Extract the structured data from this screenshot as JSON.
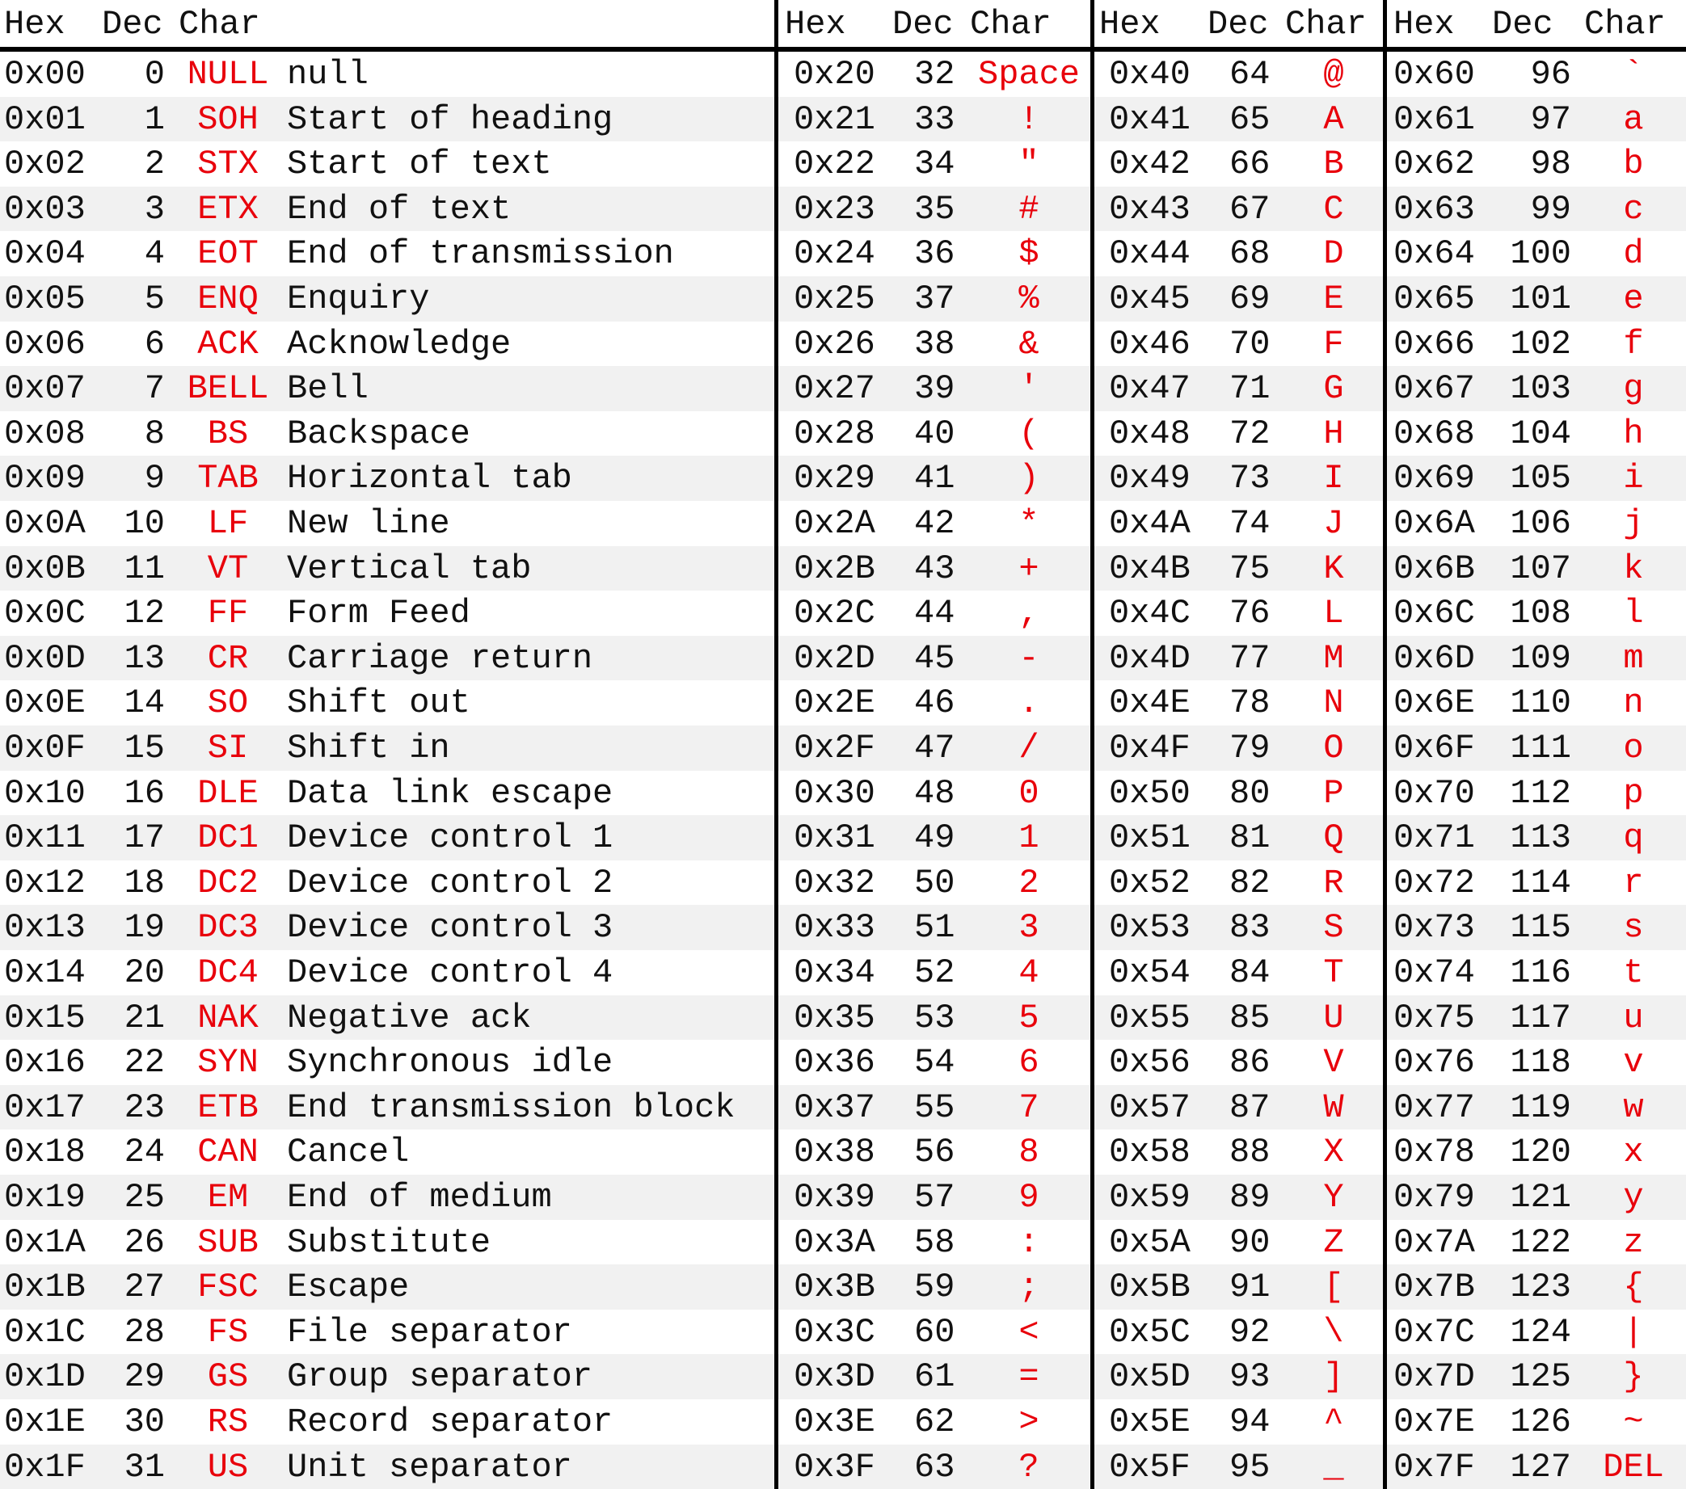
{
  "headers": {
    "b1": [
      "Hex",
      "Dec",
      "Char"
    ],
    "b2": [
      "Hex",
      "Dec",
      "Char"
    ],
    "b3": [
      "Hex",
      "Dec",
      "Char"
    ],
    "b4": [
      "Hex",
      "Dec",
      "Char"
    ]
  },
  "colors": {
    "char": "#e8000b",
    "text": "#111111",
    "alt_row": "#f1f1f1"
  },
  "control": [
    [
      "0x00",
      "0",
      "NULL",
      "null"
    ],
    [
      "0x01",
      "1",
      "SOH",
      "Start of heading"
    ],
    [
      "0x02",
      "2",
      "STX",
      "Start of text"
    ],
    [
      "0x03",
      "3",
      "ETX",
      "End of text"
    ],
    [
      "0x04",
      "4",
      "EOT",
      "End of transmission"
    ],
    [
      "0x05",
      "5",
      "ENQ",
      "Enquiry"
    ],
    [
      "0x06",
      "6",
      "ACK",
      "Acknowledge"
    ],
    [
      "0x07",
      "7",
      "BELL",
      "Bell"
    ],
    [
      "0x08",
      "8",
      "BS",
      "Backspace"
    ],
    [
      "0x09",
      "9",
      "TAB",
      "Horizontal tab"
    ],
    [
      "0x0A",
      "10",
      "LF",
      "New line"
    ],
    [
      "0x0B",
      "11",
      "VT",
      "Vertical tab"
    ],
    [
      "0x0C",
      "12",
      "FF",
      "Form Feed"
    ],
    [
      "0x0D",
      "13",
      "CR",
      "Carriage return"
    ],
    [
      "0x0E",
      "14",
      "SO",
      "Shift out"
    ],
    [
      "0x0F",
      "15",
      "SI",
      "Shift in"
    ],
    [
      "0x10",
      "16",
      "DLE",
      "Data link escape"
    ],
    [
      "0x11",
      "17",
      "DC1",
      "Device control 1"
    ],
    [
      "0x12",
      "18",
      "DC2",
      "Device control 2"
    ],
    [
      "0x13",
      "19",
      "DC3",
      "Device control 3"
    ],
    [
      "0x14",
      "20",
      "DC4",
      "Device control 4"
    ],
    [
      "0x15",
      "21",
      "NAK",
      "Negative ack"
    ],
    [
      "0x16",
      "22",
      "SYN",
      "Synchronous idle"
    ],
    [
      "0x17",
      "23",
      "ETB",
      "End transmission block"
    ],
    [
      "0x18",
      "24",
      "CAN",
      "Cancel"
    ],
    [
      "0x19",
      "25",
      "EM",
      "End of medium"
    ],
    [
      "0x1A",
      "26",
      "SUB",
      "Substitute"
    ],
    [
      "0x1B",
      "27",
      "FSC",
      "Escape"
    ],
    [
      "0x1C",
      "28",
      "FS",
      "File separator"
    ],
    [
      "0x1D",
      "29",
      "GS",
      "Group separator"
    ],
    [
      "0x1E",
      "30",
      "RS",
      "Record separator"
    ],
    [
      "0x1F",
      "31",
      "US",
      "Unit separator"
    ]
  ],
  "block2": [
    [
      "0x20",
      "32",
      "Space"
    ],
    [
      "0x21",
      "33",
      "!"
    ],
    [
      "0x22",
      "34",
      "\""
    ],
    [
      "0x23",
      "35",
      "#"
    ],
    [
      "0x24",
      "36",
      "$"
    ],
    [
      "0x25",
      "37",
      "%"
    ],
    [
      "0x26",
      "38",
      "&"
    ],
    [
      "0x27",
      "39",
      "'"
    ],
    [
      "0x28",
      "40",
      "("
    ],
    [
      "0x29",
      "41",
      ")"
    ],
    [
      "0x2A",
      "42",
      "*"
    ],
    [
      "0x2B",
      "43",
      "+"
    ],
    [
      "0x2C",
      "44",
      ","
    ],
    [
      "0x2D",
      "45",
      "-"
    ],
    [
      "0x2E",
      "46",
      "."
    ],
    [
      "0x2F",
      "47",
      "/"
    ],
    [
      "0x30",
      "48",
      "0"
    ],
    [
      "0x31",
      "49",
      "1"
    ],
    [
      "0x32",
      "50",
      "2"
    ],
    [
      "0x33",
      "51",
      "3"
    ],
    [
      "0x34",
      "52",
      "4"
    ],
    [
      "0x35",
      "53",
      "5"
    ],
    [
      "0x36",
      "54",
      "6"
    ],
    [
      "0x37",
      "55",
      "7"
    ],
    [
      "0x38",
      "56",
      "8"
    ],
    [
      "0x39",
      "57",
      "9"
    ],
    [
      "0x3A",
      "58",
      ":"
    ],
    [
      "0x3B",
      "59",
      ";"
    ],
    [
      "0x3C",
      "60",
      "<"
    ],
    [
      "0x3D",
      "61",
      "="
    ],
    [
      "0x3E",
      "62",
      ">"
    ],
    [
      "0x3F",
      "63",
      "?"
    ]
  ],
  "block3": [
    [
      "0x40",
      "64",
      "@"
    ],
    [
      "0x41",
      "65",
      "A"
    ],
    [
      "0x42",
      "66",
      "B"
    ],
    [
      "0x43",
      "67",
      "C"
    ],
    [
      "0x44",
      "68",
      "D"
    ],
    [
      "0x45",
      "69",
      "E"
    ],
    [
      "0x46",
      "70",
      "F"
    ],
    [
      "0x47",
      "71",
      "G"
    ],
    [
      "0x48",
      "72",
      "H"
    ],
    [
      "0x49",
      "73",
      "I"
    ],
    [
      "0x4A",
      "74",
      "J"
    ],
    [
      "0x4B",
      "75",
      "K"
    ],
    [
      "0x4C",
      "76",
      "L"
    ],
    [
      "0x4D",
      "77",
      "M"
    ],
    [
      "0x4E",
      "78",
      "N"
    ],
    [
      "0x4F",
      "79",
      "O"
    ],
    [
      "0x50",
      "80",
      "P"
    ],
    [
      "0x51",
      "81",
      "Q"
    ],
    [
      "0x52",
      "82",
      "R"
    ],
    [
      "0x53",
      "83",
      "S"
    ],
    [
      "0x54",
      "84",
      "T"
    ],
    [
      "0x55",
      "85",
      "U"
    ],
    [
      "0x56",
      "86",
      "V"
    ],
    [
      "0x57",
      "87",
      "W"
    ],
    [
      "0x58",
      "88",
      "X"
    ],
    [
      "0x59",
      "89",
      "Y"
    ],
    [
      "0x5A",
      "90",
      "Z"
    ],
    [
      "0x5B",
      "91",
      "["
    ],
    [
      "0x5C",
      "92",
      "\\"
    ],
    [
      "0x5D",
      "93",
      "]"
    ],
    [
      "0x5E",
      "94",
      "^"
    ],
    [
      "0x5F",
      "95",
      "_"
    ]
  ],
  "block4": [
    [
      "0x60",
      "96",
      "`"
    ],
    [
      "0x61",
      "97",
      "a"
    ],
    [
      "0x62",
      "98",
      "b"
    ],
    [
      "0x63",
      "99",
      "c"
    ],
    [
      "0x64",
      "100",
      "d"
    ],
    [
      "0x65",
      "101",
      "e"
    ],
    [
      "0x66",
      "102",
      "f"
    ],
    [
      "0x67",
      "103",
      "g"
    ],
    [
      "0x68",
      "104",
      "h"
    ],
    [
      "0x69",
      "105",
      "i"
    ],
    [
      "0x6A",
      "106",
      "j"
    ],
    [
      "0x6B",
      "107",
      "k"
    ],
    [
      "0x6C",
      "108",
      "l"
    ],
    [
      "0x6D",
      "109",
      "m"
    ],
    [
      "0x6E",
      "110",
      "n"
    ],
    [
      "0x6F",
      "111",
      "o"
    ],
    [
      "0x70",
      "112",
      "p"
    ],
    [
      "0x71",
      "113",
      "q"
    ],
    [
      "0x72",
      "114",
      "r"
    ],
    [
      "0x73",
      "115",
      "s"
    ],
    [
      "0x74",
      "116",
      "t"
    ],
    [
      "0x75",
      "117",
      "u"
    ],
    [
      "0x76",
      "118",
      "v"
    ],
    [
      "0x77",
      "119",
      "w"
    ],
    [
      "0x78",
      "120",
      "x"
    ],
    [
      "0x79",
      "121",
      "y"
    ],
    [
      "0x7A",
      "122",
      "z"
    ],
    [
      "0x7B",
      "123",
      "{"
    ],
    [
      "0x7C",
      "124",
      "|"
    ],
    [
      "0x7D",
      "125",
      "}"
    ],
    [
      "0x7E",
      "126",
      "~"
    ],
    [
      "0x7F",
      "127",
      "DEL"
    ]
  ]
}
